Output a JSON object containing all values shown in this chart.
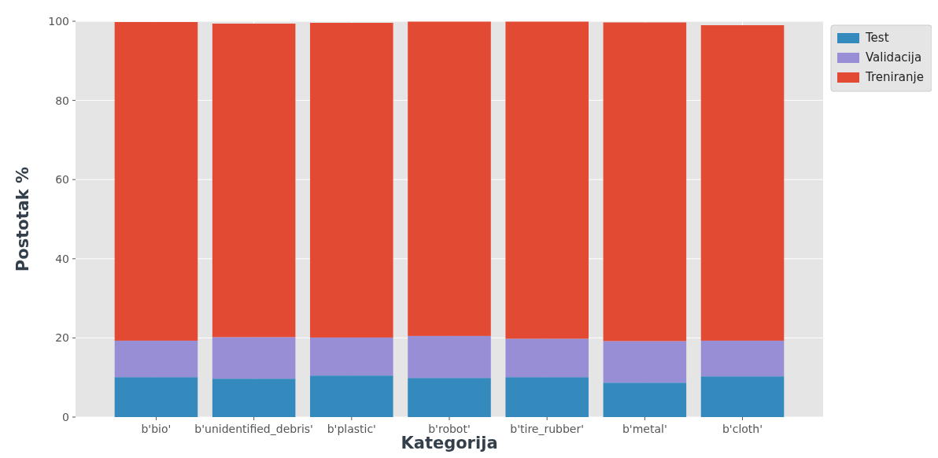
{
  "chart_data": {
    "type": "bar",
    "stacked": true,
    "xlabel": "Kategorija",
    "ylabel": "Postotak %",
    "categories": [
      "b'bio'",
      "b'unidentified_debris'",
      "b'plastic'",
      "b'robot'",
      "b'tire_rubber'",
      "b'metal'",
      "b'cloth'"
    ],
    "series": [
      {
        "name": "Test",
        "color": "#348abd",
        "values": [
          10.1,
          9.7,
          10.5,
          9.9,
          10.1,
          8.7,
          10.3
        ]
      },
      {
        "name": "Validacija",
        "color": "#988ed5",
        "values": [
          9.2,
          10.5,
          9.6,
          10.6,
          9.7,
          10.5,
          9.0
        ]
      },
      {
        "name": "Treniranje",
        "color": "#e24a33",
        "values": [
          80.5,
          79.2,
          79.5,
          79.4,
          80.1,
          80.5,
          79.7
        ]
      }
    ],
    "ylim": [
      0,
      100
    ],
    "yticks": [
      0,
      20,
      40,
      60,
      80,
      100
    ],
    "grid": true,
    "legend": "top right"
  }
}
